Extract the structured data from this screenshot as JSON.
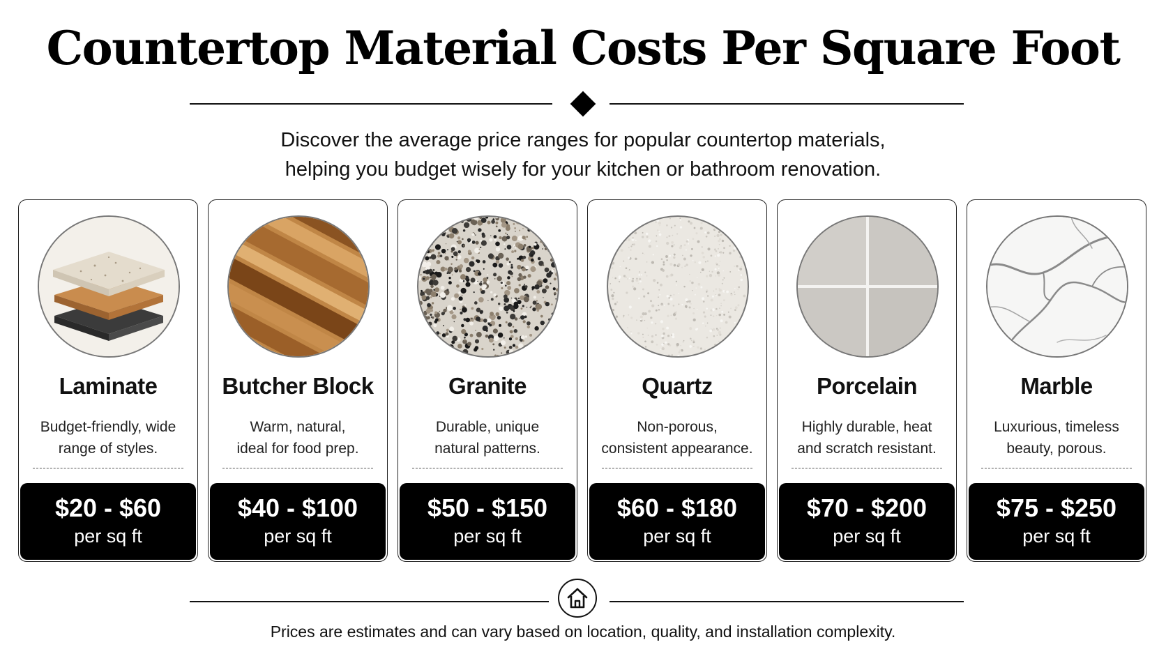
{
  "header": {
    "title": "Countertop Material Costs Per Square Foot",
    "subtitle_lines": [
      "Discover the average price ranges for popular countertop materials,",
      "helping you budget wisely for your kitchen or bathroom renovation."
    ]
  },
  "cards": [
    {
      "name": "Laminate",
      "desc_lines": [
        "Budget-friendly, wide",
        "range of styles."
      ],
      "price": "$20 - $60",
      "unit": "per sq ft",
      "swatch_icon": "layered-slabs-icon"
    },
    {
      "name": "Butcher Block",
      "desc_lines": [
        "Warm, natural,",
        "ideal for food prep."
      ],
      "price": "$40 - $100",
      "unit": "per sq ft",
      "swatch_icon": "wood-texture-icon"
    },
    {
      "name": "Granite",
      "desc_lines": [
        "Durable, unique",
        "natural patterns."
      ],
      "price": "$50 - $150",
      "unit": "per sq ft",
      "swatch_icon": "granite-texture-icon"
    },
    {
      "name": "Quartz",
      "desc_lines": [
        "Non-porous,",
        "consistent appearance."
      ],
      "price": "$60 - $180",
      "unit": "per sq ft",
      "swatch_icon": "quartz-texture-icon"
    },
    {
      "name": "Porcelain",
      "desc_lines": [
        "Highly durable, heat",
        "and scratch resistant."
      ],
      "price": "$70 - $200",
      "unit": "per sq ft",
      "swatch_icon": "porcelain-tile-icon"
    },
    {
      "name": "Marble",
      "desc_lines": [
        "Luxurious, timeless",
        "beauty, porous."
      ],
      "price": "$75 - $250",
      "unit": "per sq ft",
      "swatch_icon": "marble-texture-icon"
    }
  ],
  "footer": {
    "icon": "house-icon",
    "note": "Prices are estimates and can vary based on location, quality, and installation complexity."
  },
  "colors": {
    "text": "#111111",
    "price_bg": "#000000",
    "price_text": "#ffffff",
    "wood": "#b57a3c",
    "granite_base": "#d9d4cb"
  }
}
